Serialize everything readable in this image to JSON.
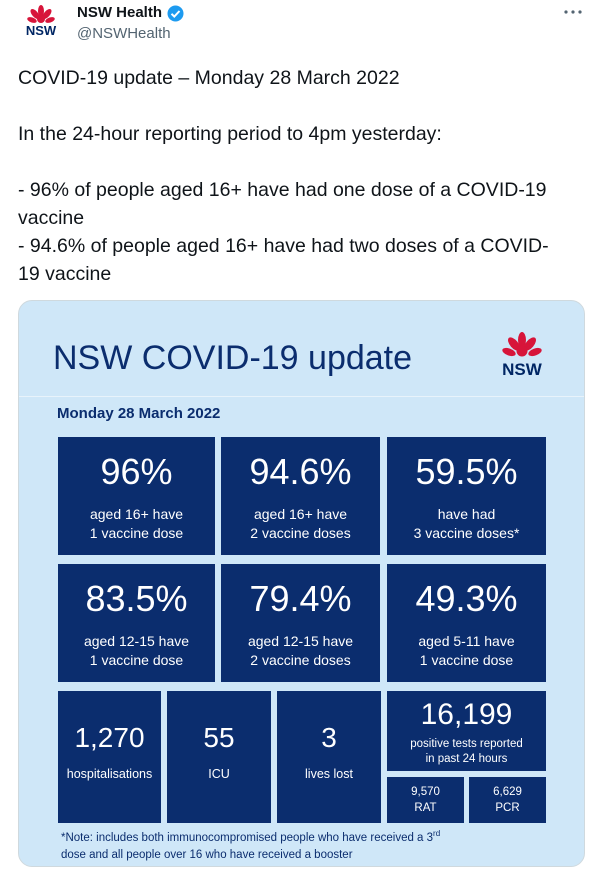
{
  "tweet": {
    "author": {
      "name": "NSW Health",
      "handle": "@NSWHealth",
      "logo_text": "NSW"
    },
    "text": {
      "headline": "COVID-19 update – Monday 28 March 2022",
      "intro": "In the 24-hour reporting period to 4pm yesterday:",
      "points": [
        "- 96% of people aged 16+ have had one dose of a COVID-19 vaccine",
        "- 94.6% of people aged 16+ have had two doses of a COVID-19 vaccine"
      ]
    }
  },
  "infographic": {
    "title": "NSW COVID-19 update",
    "logo_text": "NSW",
    "date": "Monday 28 March 2022",
    "stats": [
      {
        "value": "96%",
        "label": [
          "aged 16+ have",
          "1 vaccine dose"
        ]
      },
      {
        "value": "94.6%",
        "label": [
          "aged 16+ have",
          "2 vaccine doses"
        ]
      },
      {
        "value": "59.5%",
        "label": [
          "have had",
          "3 vaccine doses*"
        ]
      },
      {
        "value": "83.5%",
        "label": [
          "aged 12-15 have",
          "1 vaccine dose"
        ]
      },
      {
        "value": "79.4%",
        "label": [
          "aged 12-15 have",
          "2 vaccine doses"
        ]
      },
      {
        "value": "49.3%",
        "label": [
          "aged 5-11 have",
          "1 vaccine dose"
        ]
      }
    ],
    "counts": [
      {
        "value": "1,270",
        "label": "hospitalisations"
      },
      {
        "value": "55",
        "label": "ICU"
      },
      {
        "value": "3",
        "label": "lives lost"
      }
    ],
    "tests": {
      "value": "16,199",
      "label": [
        "positive tests reported",
        "in past 24 hours"
      ],
      "breakdown": [
        {
          "value": "9,570",
          "label": "RAT"
        },
        {
          "value": "6,629",
          "label": "PCR"
        }
      ]
    },
    "note": {
      "line1": "*Note: includes both immunocompromised people who have received a 3",
      "sup": "rd",
      "line2": "dose and all people over 16 who have received a booster"
    }
  }
}
